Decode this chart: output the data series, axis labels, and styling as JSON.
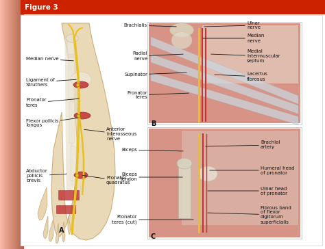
{
  "title": "Figure 3",
  "title_color": "#ffffff",
  "title_bg_color": "#cc2200",
  "bg_color": "#ffffff",
  "left_gradient_color": "#f5a090",
  "fig_width": 4.74,
  "fig_height": 3.64,
  "dpi": 100,
  "panel_labels": [
    "A",
    "B",
    "C"
  ],
  "label_fontsize": 5.0,
  "label_color": "#111111",
  "arrow_color": "#111111",
  "arm_skin_color": "#e8d5b0",
  "arm_outline_color": "#c8a870",
  "muscle_red": "#c03030",
  "muscle_pink": "#d07060",
  "nerve_yellow": "#e8c020",
  "nerve_yellow2": "#d4a800",
  "bone_color": "#e8e0cc",
  "tendon_color": "#d8d0bc",
  "fascia_color": "#c8d8e0",
  "tissue_red": "#b84040",
  "background_panel": "#faf8f5",
  "panel_border": "#cccccc"
}
